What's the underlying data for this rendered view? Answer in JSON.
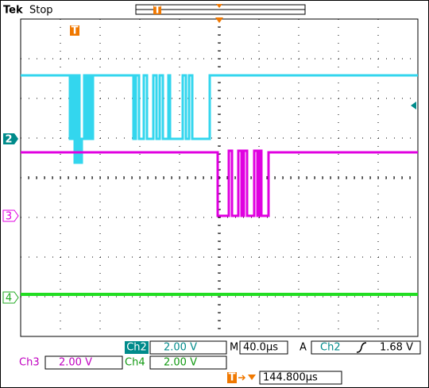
{
  "header": {
    "brand": "Tek",
    "status": "Stop"
  },
  "markers": {
    "trigger": "T",
    "ch2": "2",
    "ch3": "3",
    "ch4": "4"
  },
  "readout": {
    "ch2_label": "Ch2",
    "ch2_scale": "2.00 V",
    "timebase_label": "M",
    "timebase": "40.0µs",
    "trigger_mode": "A",
    "trigger_source": "Ch2",
    "trigger_level": "1.68 V",
    "ch3_label": "Ch3",
    "ch3_scale": "2.00 V",
    "ch4_label": "Ch4",
    "ch4_scale": "2.00 V",
    "trigger_position": "144.800µs"
  }
}
